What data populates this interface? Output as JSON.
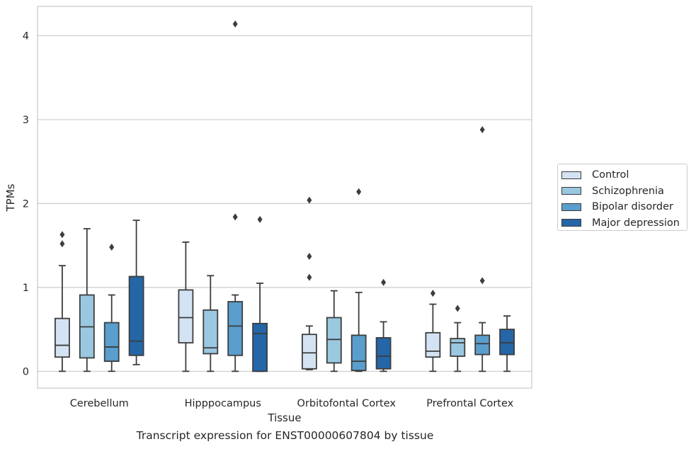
{
  "caption": "Transcript expression for ENST00000607804 by tissue",
  "chart_data": {
    "type": "boxplot",
    "title": "",
    "xlabel": "Tissue",
    "ylabel": "TPMs",
    "ylim": [
      -0.2,
      4.35
    ],
    "yticks": [
      0,
      1,
      2,
      3,
      4
    ],
    "grid": true,
    "legend_position": "right",
    "categories": [
      "Cerebellum",
      "Hipppocampus",
      "Orbitofontal Cortex",
      "Prefrontal Cortex"
    ],
    "series": [
      {
        "name": "Control",
        "color": "#d3e3f3",
        "boxes": [
          {
            "whislo": 0.0,
            "q1": 0.17,
            "median": 0.31,
            "q3": 0.63,
            "whishi": 1.26,
            "fliers": [
              1.52,
              1.63
            ]
          },
          {
            "whislo": 0.0,
            "q1": 0.34,
            "median": 0.64,
            "q3": 0.97,
            "whishi": 1.54,
            "fliers": []
          },
          {
            "whislo": 0.02,
            "q1": 0.03,
            "median": 0.22,
            "q3": 0.44,
            "whishi": 0.54,
            "fliers": [
              1.12,
              1.37,
              2.04
            ]
          },
          {
            "whislo": 0.0,
            "q1": 0.17,
            "median": 0.24,
            "q3": 0.46,
            "whishi": 0.8,
            "fliers": [
              0.93
            ]
          }
        ]
      },
      {
        "name": "Schizophrenia",
        "color": "#9ac8e0",
        "boxes": [
          {
            "whislo": 0.0,
            "q1": 0.16,
            "median": 0.53,
            "q3": 0.91,
            "whishi": 1.7,
            "fliers": []
          },
          {
            "whislo": 0.0,
            "q1": 0.21,
            "median": 0.28,
            "q3": 0.73,
            "whishi": 1.14,
            "fliers": []
          },
          {
            "whislo": 0.0,
            "q1": 0.1,
            "median": 0.38,
            "q3": 0.64,
            "whishi": 0.96,
            "fliers": []
          },
          {
            "whislo": 0.0,
            "q1": 0.18,
            "median": 0.34,
            "q3": 0.39,
            "whishi": 0.58,
            "fliers": [
              0.75
            ]
          }
        ]
      },
      {
        "name": "Bipolar disorder",
        "color": "#5a9ecd",
        "boxes": [
          {
            "whislo": 0.0,
            "q1": 0.12,
            "median": 0.29,
            "q3": 0.58,
            "whishi": 0.91,
            "fliers": [
              1.48
            ]
          },
          {
            "whislo": 0.0,
            "q1": 0.19,
            "median": 0.54,
            "q3": 0.83,
            "whishi": 0.91,
            "fliers": [
              1.84,
              4.14
            ]
          },
          {
            "whislo": 0.0,
            "q1": 0.01,
            "median": 0.12,
            "q3": 0.43,
            "whishi": 0.94,
            "fliers": [
              2.14
            ]
          },
          {
            "whislo": 0.0,
            "q1": 0.2,
            "median": 0.33,
            "q3": 0.43,
            "whishi": 0.58,
            "fliers": [
              1.08,
              2.88
            ]
          }
        ]
      },
      {
        "name": "Major depression",
        "color": "#2466a8",
        "boxes": [
          {
            "whislo": 0.08,
            "q1": 0.19,
            "median": 0.36,
            "q3": 1.13,
            "whishi": 1.8,
            "fliers": []
          },
          {
            "whislo": 0.0,
            "q1": 0.0,
            "median": 0.45,
            "q3": 0.57,
            "whishi": 1.05,
            "fliers": [
              1.81
            ]
          },
          {
            "whislo": 0.0,
            "q1": 0.03,
            "median": 0.18,
            "q3": 0.4,
            "whishi": 0.59,
            "fliers": [
              1.06
            ]
          },
          {
            "whislo": 0.0,
            "q1": 0.2,
            "median": 0.34,
            "q3": 0.5,
            "whishi": 0.66,
            "fliers": []
          }
        ]
      }
    ]
  }
}
